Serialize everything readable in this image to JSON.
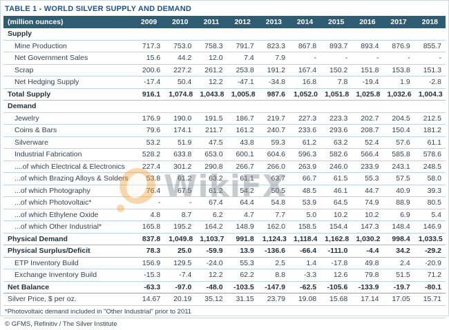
{
  "title": "TABLE 1 - WORLD SILVER SUPPLY AND DEMAND",
  "footnote": "*Photovoltaic demand included in \"Other Industrial\" prior to 2011",
  "source": "© GFMS, Refinitiv / The Silver Institute",
  "watermark": {
    "text": "WikiFX"
  },
  "colors": {
    "title": "#1b5393",
    "header_bg": "#2d5c73",
    "grid": "#bcd4e0",
    "accent_orange": "#f4a13a"
  },
  "chart_data": {
    "type": "table",
    "title": "TABLE 1 - WORLD SILVER SUPPLY AND DEMAND",
    "units_label": "(million ounces)",
    "columns": [
      "2009",
      "2010",
      "2011",
      "2012",
      "2013",
      "2014",
      "2015",
      "2016",
      "2017",
      "2018"
    ],
    "rows": [
      {
        "label": "Supply",
        "type": "section",
        "indent": 0,
        "values": []
      },
      {
        "label": "Mine Production",
        "type": "data",
        "indent": 1,
        "values": [
          "717.3",
          "753.0",
          "758.3",
          "791.7",
          "823.3",
          "867.8",
          "893.7",
          "893.4",
          "876.9",
          "855.7"
        ]
      },
      {
        "label": "Net Government Sales",
        "type": "data",
        "indent": 1,
        "values": [
          "15.6",
          "44.2",
          "12.0",
          "7.4",
          "7.9",
          "-",
          "-",
          "-",
          "-",
          "-"
        ]
      },
      {
        "label": "Scrap",
        "type": "data",
        "indent": 1,
        "values": [
          "200.6",
          "227.2",
          "261.2",
          "253.8",
          "191.2",
          "167.4",
          "150.2",
          "151.8",
          "153.8",
          "151.3"
        ]
      },
      {
        "label": "Net Hedging Supply",
        "type": "data",
        "indent": 1,
        "values": [
          "-17.4",
          "50.4",
          "12.2",
          "-47.1",
          "-34.8",
          "16.8",
          "7.8",
          "-19.4",
          "1.9",
          "-2.8"
        ]
      },
      {
        "label": "Total Supply",
        "type": "total",
        "indent": 0,
        "values": [
          "916.1",
          "1,074.8",
          "1,043.8",
          "1,005.8",
          "987.6",
          "1,052.0",
          "1,051.8",
          "1,025.8",
          "1,032.6",
          "1,004.3"
        ]
      },
      {
        "label": "Demand",
        "type": "section",
        "indent": 0,
        "values": []
      },
      {
        "label": "Jewelry",
        "type": "data",
        "indent": 1,
        "values": [
          "176.9",
          "190.0",
          "191.5",
          "186.7",
          "219.7",
          "227.3",
          "223.3",
          "202.7",
          "204.5",
          "212.5"
        ]
      },
      {
        "label": "Coins & Bars",
        "type": "data",
        "indent": 1,
        "values": [
          "79.6",
          "174.1",
          "211.7",
          "161.2",
          "240.7",
          "233.6",
          "293.6",
          "208.7",
          "150.4",
          "181.2"
        ]
      },
      {
        "label": "Silverware",
        "type": "data",
        "indent": 1,
        "values": [
          "53.2",
          "51.9",
          "47.5",
          "43.8",
          "59.3",
          "61.2",
          "63.2",
          "52.4",
          "57.6",
          "61.1"
        ]
      },
      {
        "label": "Industrial Fabrication",
        "type": "data",
        "indent": 1,
        "values": [
          "528.2",
          "633.8",
          "653.0",
          "600.1",
          "604.6",
          "596.3",
          "582.6",
          "566.4",
          "585.8",
          "578.6"
        ]
      },
      {
        "label": "....of which Electrical & Electronics",
        "type": "sub",
        "indent": 1,
        "values": [
          "227.4",
          "301.2",
          "290.8",
          "266.7",
          "266.0",
          "263.9",
          "246.0",
          "233.9",
          "243.1",
          "248.5"
        ]
      },
      {
        "label": "...of which Brazing Alloys & Solders",
        "type": "sub",
        "indent": 1,
        "values": [
          "53.8",
          "61.2",
          "63.2",
          "61.1",
          "63.7",
          "66.7",
          "61.5",
          "55.3",
          "57.5",
          "58.0"
        ]
      },
      {
        "label": "...of which Photography",
        "type": "sub",
        "indent": 1,
        "values": [
          "76.4",
          "67.5",
          "61.2",
          "54.2",
          "50.5",
          "48.5",
          "46.1",
          "44.7",
          "40.9",
          "39.3"
        ]
      },
      {
        "label": "...of which Photovoltaic*",
        "type": "sub",
        "indent": 1,
        "values": [
          "-",
          "-",
          "67.4",
          "64.4",
          "54.8",
          "53.9",
          "64.5",
          "74.9",
          "88.9",
          "80.5"
        ]
      },
      {
        "label": "...of which Ethylene Oxide",
        "type": "sub",
        "indent": 1,
        "values": [
          "4.8",
          "8.7",
          "6.2",
          "4.7",
          "7.7",
          "5.0",
          "10.2",
          "10.2",
          "6.9",
          "5.4"
        ]
      },
      {
        "label": "...of which Other Industrial*",
        "type": "sub",
        "indent": 1,
        "values": [
          "165.8",
          "195.2",
          "164.2",
          "148.9",
          "162.0",
          "158.5",
          "154.4",
          "147.3",
          "148.4",
          "146.9"
        ]
      },
      {
        "label": "Physical Demand",
        "type": "total",
        "indent": 0,
        "values": [
          "837.8",
          "1,049.8",
          "1,103.7",
          "991.8",
          "1,124.3",
          "1,118.4",
          "1,162.8",
          "1,030.2",
          "998.4",
          "1,033.5"
        ]
      },
      {
        "label": "Physical Surplus/Deficit",
        "type": "total",
        "indent": 0,
        "values": [
          "78.3",
          "25.0",
          "-59.9",
          "13.9",
          "-136.6",
          "-66.4",
          "-111.0",
          "-4.4",
          "34.2",
          "-29.2"
        ]
      },
      {
        "label": "ETP Inventory Build",
        "type": "data",
        "indent": 1,
        "values": [
          "156.9",
          "129.5",
          "-24.0",
          "55.3",
          "2.5",
          "1.4",
          "-17.8",
          "49.8",
          "2.4",
          "-20.9"
        ]
      },
      {
        "label": "Exchange Inventory Build",
        "type": "data",
        "indent": 1,
        "values": [
          "-15.3",
          "-7.4",
          "12.2",
          "62.2",
          "8.8",
          "-3.3",
          "12.6",
          "79.8",
          "51.5",
          "71.2"
        ]
      },
      {
        "label": "Net Balance",
        "type": "balance",
        "indent": 0,
        "values": [
          "-63.3",
          "-97.0",
          "-48.0",
          "-103.5",
          "-147.9",
          "-62.5",
          "-105.6",
          "-133.9",
          "-19.7",
          "-80.1"
        ]
      },
      {
        "label": "Silver Price, $ per oz.",
        "type": "price",
        "indent": 0,
        "values": [
          "14.67",
          "20.19",
          "35.12",
          "31.15",
          "23.79",
          "19.08",
          "15.68",
          "17.14",
          "17.05",
          "15.71"
        ]
      }
    ]
  }
}
